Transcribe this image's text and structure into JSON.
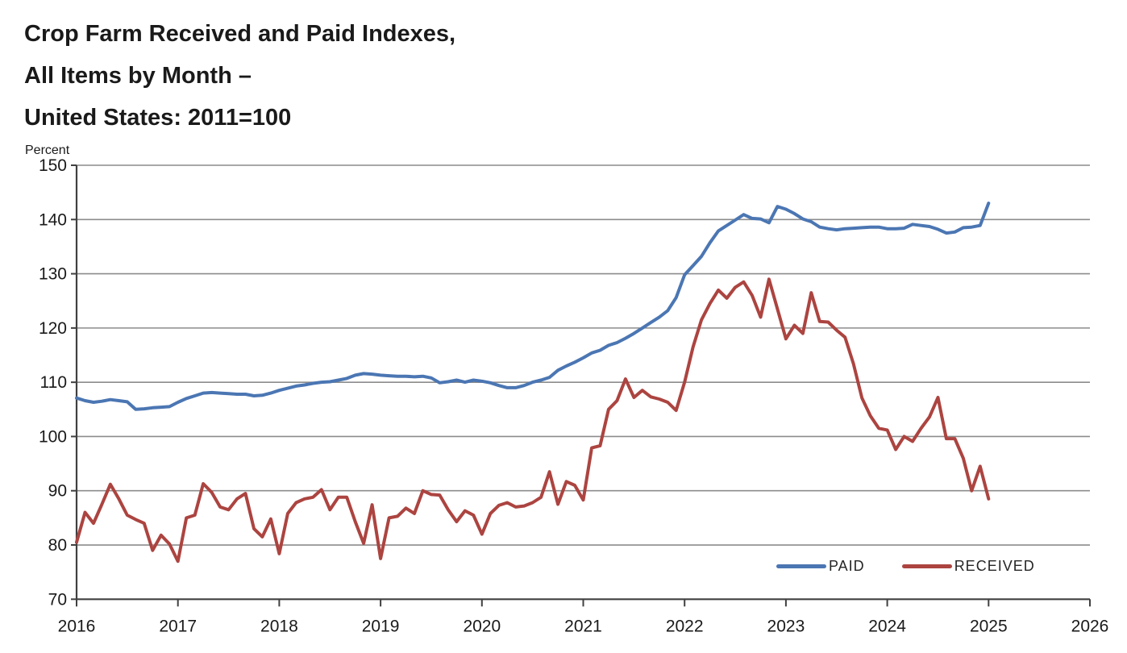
{
  "title": {
    "line1": "Crop Farm Received and Paid Indexes,",
    "line2": "All Items by Month –",
    "line3": "United States: 2011=100"
  },
  "chart_data": {
    "type": "line",
    "title": "Crop Farm Received and Paid Indexes, All Items by Month – United States: 2011=100",
    "ylabel": "Percent",
    "xlabel": "",
    "ylim": [
      70,
      150
    ],
    "y_ticks": [
      70,
      80,
      90,
      100,
      110,
      120,
      130,
      140,
      150
    ],
    "x_tick_years": [
      2016,
      2017,
      2018,
      2019,
      2020,
      2021,
      2022,
      2023,
      2024,
      2025,
      2026
    ],
    "x_range_years": [
      2016,
      2026
    ],
    "start_month": "2016-01",
    "end_month": "2025-01",
    "frequency": "monthly",
    "grid": true,
    "legend_position": "inside-bottom-right",
    "axis_color": "#404040",
    "grid_color": "#8c8c8c",
    "series": [
      {
        "name": "PAID",
        "color": "#4B76B3",
        "values": [
          107.1,
          106.6,
          106.3,
          106.5,
          106.8,
          106.6,
          106.4,
          105.0,
          105.1,
          105.3,
          105.4,
          105.5,
          106.3,
          107.0,
          107.5,
          108.0,
          108.1,
          108.0,
          107.9,
          107.8,
          107.8,
          107.5,
          107.6,
          108.0,
          108.5,
          108.9,
          109.3,
          109.5,
          109.8,
          110.0,
          110.1,
          110.4,
          110.7,
          111.3,
          111.6,
          111.5,
          111.3,
          111.2,
          111.1,
          111.1,
          111.0,
          111.1,
          110.8,
          109.9,
          110.1,
          110.4,
          110.0,
          110.4,
          110.2,
          109.9,
          109.4,
          109.0,
          109.0,
          109.4,
          110.0,
          110.4,
          110.9,
          112.2,
          113.0,
          113.7,
          114.5,
          115.4,
          115.9,
          116.8,
          117.3,
          118.1,
          119.0,
          120.0,
          121.0,
          122.0,
          123.2,
          125.6,
          129.8,
          131.5,
          133.2,
          135.7,
          137.9,
          138.9,
          139.9,
          140.9,
          140.2,
          140.1,
          139.4,
          142.4,
          141.9,
          141.1,
          140.1,
          139.6,
          138.6,
          138.3,
          138.1,
          138.3,
          138.4,
          138.5,
          138.6,
          138.6,
          138.3,
          138.3,
          138.4,
          139.1,
          138.9,
          138.7,
          138.2,
          137.5,
          137.7,
          138.5,
          138.6,
          138.9,
          143.0
        ]
      },
      {
        "name": "RECEIVED",
        "color": "#AC4440",
        "values": [
          80.5,
          86.0,
          84.0,
          87.5,
          91.2,
          88.5,
          85.5,
          84.7,
          84.0,
          79.0,
          81.8,
          80.2,
          77.0,
          85.0,
          85.5,
          91.3,
          89.7,
          87.0,
          86.5,
          88.5,
          89.5,
          83.0,
          81.5,
          84.8,
          78.4,
          85.8,
          87.8,
          88.5,
          88.8,
          90.2,
          86.5,
          88.8,
          88.8,
          84.3,
          80.3,
          87.4,
          77.5,
          85.0,
          85.3,
          86.8,
          85.8,
          90.0,
          89.3,
          89.2,
          86.5,
          84.3,
          86.3,
          85.5,
          82.0,
          85.8,
          87.3,
          87.8,
          87.0,
          87.2,
          87.8,
          88.8,
          93.5,
          87.5,
          91.7,
          91.0,
          88.3,
          97.9,
          98.3,
          105.0,
          106.6,
          110.6,
          107.2,
          108.5,
          107.3,
          106.9,
          106.3,
          104.8,
          110.0,
          116.5,
          121.5,
          124.5,
          127.0,
          125.5,
          127.5,
          128.5,
          126.0,
          122.0,
          129.0,
          123.5,
          118.0,
          120.5,
          119.0,
          126.5,
          121.2,
          121.1,
          119.6,
          118.3,
          113.4,
          107.1,
          103.8,
          101.5,
          101.2,
          97.6,
          100.0,
          99.1,
          101.5,
          103.6,
          107.2,
          99.6,
          99.6,
          96.0,
          90.0,
          94.5,
          88.5
        ]
      }
    ]
  }
}
